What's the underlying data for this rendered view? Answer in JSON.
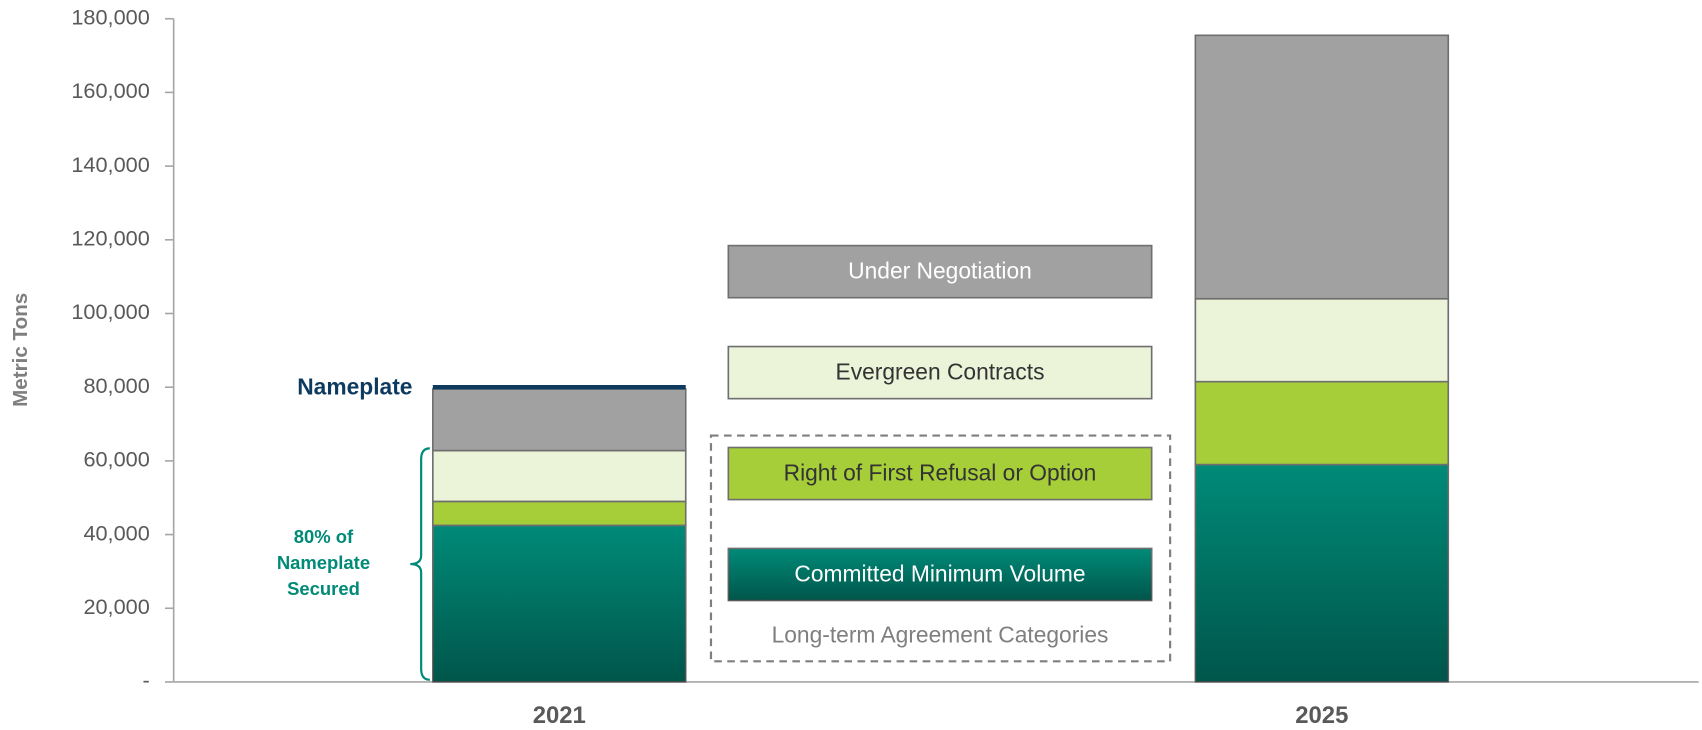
{
  "chart_data": {
    "type": "stacked_bar",
    "y_label": "Metric Tons",
    "categories": [
      "2021",
      "2025"
    ],
    "series": [
      {
        "name": "Committed Minimum Volume",
        "color": "#008a78",
        "values": [
          42500,
          59000
        ]
      },
      {
        "name": "Right of First Refusal or Option",
        "color": "#a6ce39",
        "values": [
          6500,
          22500
        ]
      },
      {
        "name": "Evergreen Contracts",
        "color": "#ebf3d9",
        "values": [
          13800,
          22500
        ]
      },
      {
        "name": "Under Negotiation",
        "color": "#a0a1a0",
        "values": [
          16700,
          71500
        ]
      }
    ],
    "legend_title": "Long-term Agreement Categories",
    "nameplate": {
      "label": "Nameplate",
      "value": 80000,
      "color": "#0d3a5e"
    },
    "annotation": [
      "80% of",
      "Nameplate",
      "Secured"
    ],
    "annotation_color": "#008a78",
    "ylim": [
      0,
      180000
    ],
    "yticks": [
      {
        "value": 0,
        "label": "-"
      },
      {
        "value": 20000,
        "label": "20,000"
      },
      {
        "value": 40000,
        "label": "40,000"
      },
      {
        "value": 60000,
        "label": "60,000"
      },
      {
        "value": 80000,
        "label": "80,000"
      },
      {
        "value": 100000,
        "label": "100,000"
      },
      {
        "value": 120000,
        "label": "120,000"
      },
      {
        "value": 140000,
        "label": "140,000"
      },
      {
        "value": 160000,
        "label": "160,000"
      },
      {
        "value": 180000,
        "label": "180,000"
      }
    ]
  }
}
